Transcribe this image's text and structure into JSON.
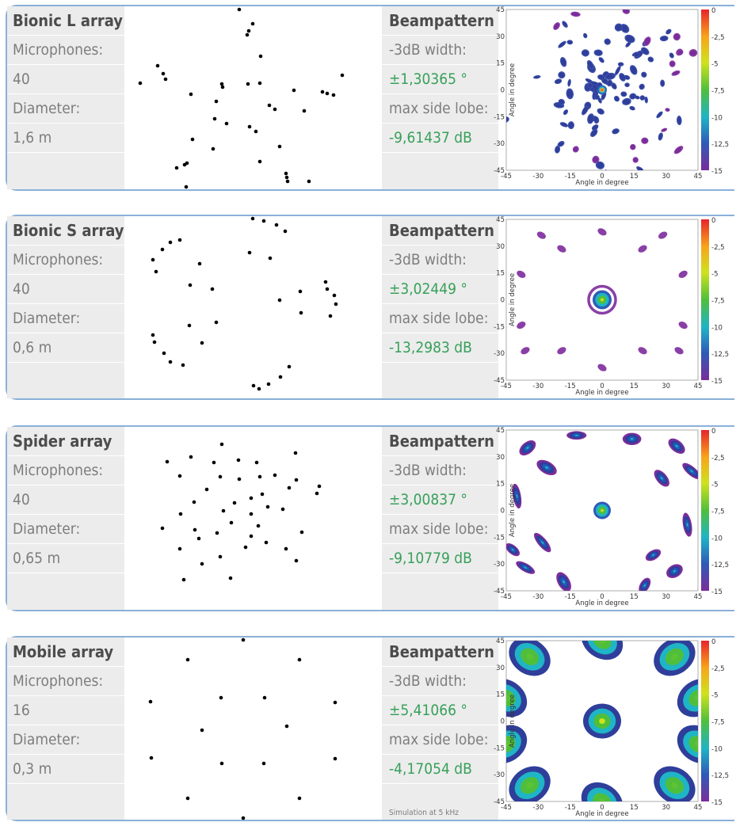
{
  "panels": [
    {
      "title": "Bionic L array",
      "mic_label": "Microphones:",
      "mic_count": "40",
      "diameter_label": "Diameter:",
      "diameter": "1,6 m",
      "beam_title": "Beampattern",
      "width_label": "-3dB width:",
      "width_value": "±1,30365 °",
      "side_label": "max side lobe:",
      "side_value": "-9,61437 dB",
      "pattern": "bionic-l"
    },
    {
      "title": "Bionic S array",
      "mic_label": "Microphones:",
      "mic_count": "40",
      "diameter_label": "Diameter:",
      "diameter": "0,6 m",
      "beam_title": "Beampattern",
      "width_label": "-3dB width:",
      "width_value": "±3,02449 °",
      "side_label": "max side lobe:",
      "side_value": "-13,2983 dB",
      "pattern": "bionic-s"
    },
    {
      "title": "Spider array",
      "mic_label": "Microphones:",
      "mic_count": "40",
      "diameter_label": "Diameter:",
      "diameter": "0,65 m",
      "beam_title": "Beampattern",
      "width_label": "-3dB width:",
      "width_value": "±3,00837 °",
      "side_label": "max side lobe:",
      "side_value": "-9,10779 dB",
      "pattern": "spider"
    },
    {
      "title": "Mobile array",
      "mic_label": "Microphones:",
      "mic_count": "16",
      "diameter_label": "Diameter:",
      "diameter": "0,3 m",
      "beam_title": "Beampattern",
      "width_label": "-3dB width:",
      "width_value": "±5,41066 °",
      "side_label": "max side lobe:",
      "side_value": "-4,17054 dB",
      "pattern": "mobile"
    }
  ],
  "note": "Simulation at 5 kHz",
  "axis": {
    "xlabel": "Angle in degree",
    "ylabel": "Angle in degree",
    "ticks": [
      "-45",
      "-30",
      "-15",
      "0",
      "15",
      "30",
      "45"
    ],
    "yticks": [
      "45",
      "30",
      "15",
      "0",
      "-15",
      "-30",
      "-45"
    ],
    "colorbar": [
      "0",
      "-2,5",
      "-5",
      "-7,5",
      "-10",
      "-12,5",
      "-15"
    ]
  }
}
